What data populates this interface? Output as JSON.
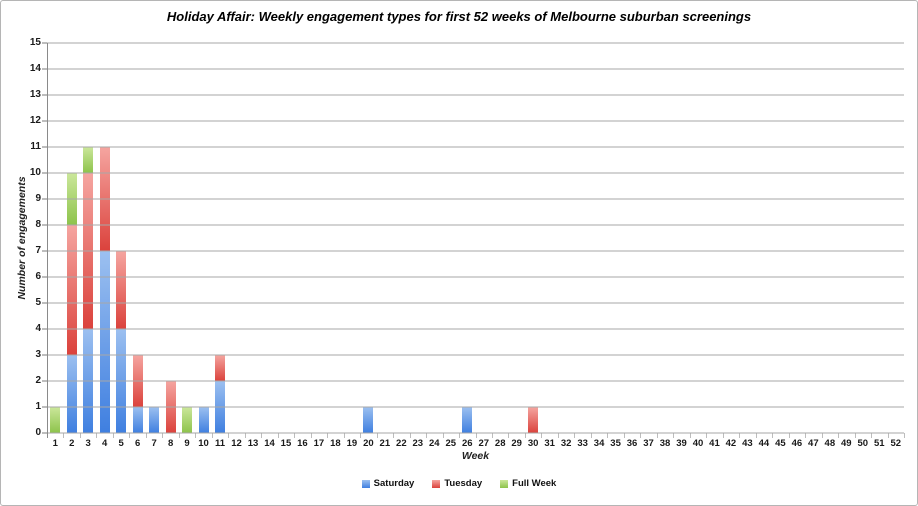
{
  "title": "Holiday Affair: Weekly engagement types for first 52 weeks of Melbourne suburban screenings",
  "chart_data": {
    "type": "bar",
    "stacked": true,
    "title": "Holiday Affair: Weekly engagement types for first 52 weeks of Melbourne suburban screenings",
    "xlabel": "Week",
    "ylabel": "Number of engagements",
    "ylim": [
      0,
      15
    ],
    "yticks": [
      "0",
      "1",
      "2",
      "3",
      "4",
      "5",
      "6",
      "7",
      "8",
      "9",
      "10",
      "11",
      "12",
      "13",
      "14",
      "15"
    ],
    "grid": "horizontal",
    "legend_position": "bottom",
    "categories": [
      "1",
      "2",
      "3",
      "4",
      "5",
      "6",
      "7",
      "8",
      "9",
      "10",
      "11",
      "12",
      "13",
      "14",
      "15",
      "16",
      "17",
      "18",
      "19",
      "20",
      "21",
      "22",
      "23",
      "24",
      "25",
      "26",
      "27",
      "28",
      "29",
      "30",
      "31",
      "32",
      "33",
      "34",
      "35",
      "36",
      "37",
      "38",
      "39",
      "40",
      "41",
      "42",
      "43",
      "44",
      "45",
      "46",
      "47",
      "48",
      "49",
      "50",
      "51",
      "52"
    ],
    "series": [
      {
        "name": "Saturday",
        "color_top": "#9cc0f0",
        "color_bottom": "#3f7fe0",
        "values": [
          0,
          3,
          4,
          7,
          4,
          1,
          1,
          0,
          0,
          1,
          2,
          0,
          0,
          0,
          0,
          0,
          0,
          0,
          0,
          1,
          0,
          0,
          0,
          0,
          0,
          1,
          0,
          0,
          0,
          0,
          0,
          0,
          0,
          0,
          0,
          0,
          0,
          0,
          0,
          0,
          0,
          0,
          0,
          0,
          0,
          0,
          0,
          0,
          0,
          0,
          0,
          0
        ]
      },
      {
        "name": "Tuesday",
        "color_top": "#f5a5a0",
        "color_bottom": "#db423c",
        "values": [
          0,
          5,
          6,
          4,
          3,
          2,
          0,
          2,
          0,
          0,
          1,
          0,
          0,
          0,
          0,
          0,
          0,
          0,
          0,
          0,
          0,
          0,
          0,
          0,
          0,
          0,
          0,
          0,
          0,
          1,
          0,
          0,
          0,
          0,
          0,
          0,
          0,
          0,
          0,
          0,
          0,
          0,
          0,
          0,
          0,
          0,
          0,
          0,
          0,
          0,
          0,
          0
        ]
      },
      {
        "name": "Full Week",
        "color_top": "#cbe79b",
        "color_bottom": "#8dc34b",
        "values": [
          1,
          2,
          1,
          0,
          0,
          0,
          0,
          0,
          1,
          0,
          0,
          0,
          0,
          0,
          0,
          0,
          0,
          0,
          0,
          0,
          0,
          0,
          0,
          0,
          0,
          0,
          0,
          0,
          0,
          0,
          0,
          0,
          0,
          0,
          0,
          0,
          0,
          0,
          0,
          0,
          0,
          0,
          0,
          0,
          0,
          0,
          0,
          0,
          0,
          0,
          0,
          0
        ]
      }
    ]
  }
}
